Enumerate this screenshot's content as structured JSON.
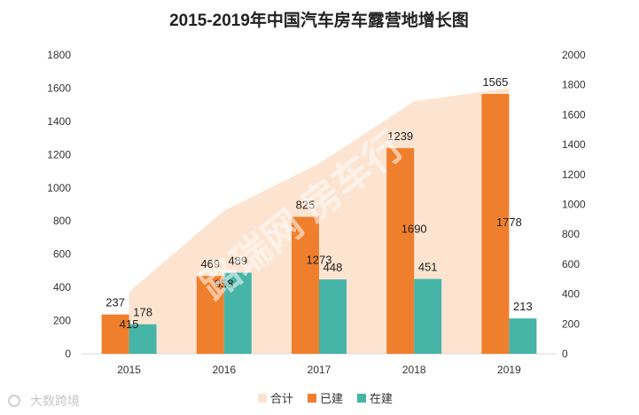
{
  "chart_data": {
    "type": "bar",
    "title": "2015-2019年中国汽车房车露营地增长图",
    "categories": [
      "2015",
      "2016",
      "2017",
      "2018",
      "2019"
    ],
    "y_left": {
      "ticks": [
        "0",
        "200",
        "400",
        "600",
        "800",
        "1000",
        "1200",
        "1400",
        "1600",
        "1800"
      ],
      "ylim": [
        0,
        1800
      ]
    },
    "y_right": {
      "ticks": [
        "0",
        "200",
        "400",
        "600",
        "800",
        "1000",
        "1200",
        "1400",
        "1600",
        "1800",
        "2000"
      ],
      "ylim": [
        0,
        2000
      ]
    },
    "series": [
      {
        "name": "合计",
        "type": "area",
        "axis": "right",
        "color": "#FCE4D0",
        "values": [
          415,
          958,
          1273,
          1690,
          1778
        ]
      },
      {
        "name": "已建",
        "type": "bar",
        "axis": "left",
        "color": "#F07F2D",
        "values": [
          237,
          469,
          825,
          1239,
          1565
        ]
      },
      {
        "name": "在建",
        "type": "bar",
        "axis": "left",
        "color": "#47B4A8",
        "values": [
          178,
          489,
          448,
          451,
          213
        ]
      }
    ],
    "legend_position": "bottom-center"
  },
  "watermark": {
    "text": "路瑞网 房车行"
  },
  "brand": {
    "text": "大数跨境"
  }
}
